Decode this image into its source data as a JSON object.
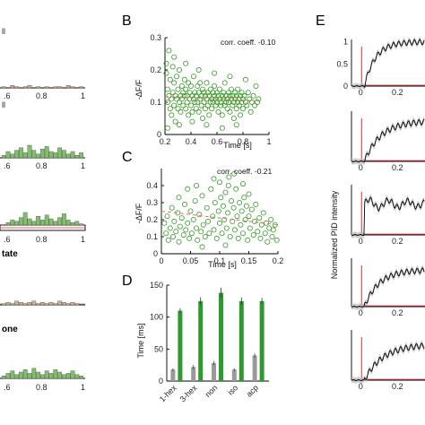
{
  "panel_labels": {
    "B": "B",
    "C": "C",
    "D": "D",
    "E": "E"
  },
  "left_panels": {
    "texts": [
      "ll",
      "ll",
      "tate",
      "one"
    ],
    "tick_labels": [
      ".6",
      "0.8",
      "1"
    ]
  },
  "chart_data": [
    {
      "panel": "B",
      "type": "scatter",
      "xlabel": "Time [s]",
      "ylabel": "-ΔF/F",
      "xlim": [
        0.2,
        1.0
      ],
      "ylim": [
        0,
        0.3
      ],
      "xticks": [
        "0.2",
        "0.4",
        "0.6",
        "0.8",
        "1"
      ],
      "yticks": [
        "0",
        "0.1",
        "0.2",
        "0.3"
      ],
      "annotation": "corr. coeff. -0.10",
      "color": "#3a9a2a",
      "points": [
        [
          0.21,
          0.22
        ],
        [
          0.21,
          0.19
        ],
        [
          0.22,
          0.1
        ],
        [
          0.22,
          0.14
        ],
        [
          0.23,
          0.26
        ],
        [
          0.23,
          0.12
        ],
        [
          0.24,
          0.08
        ],
        [
          0.24,
          0.17
        ],
        [
          0.25,
          0.11
        ],
        [
          0.25,
          0.06
        ],
        [
          0.26,
          0.21
        ],
        [
          0.26,
          0.13
        ],
        [
          0.27,
          0.09
        ],
        [
          0.27,
          0.16
        ],
        [
          0.28,
          0.12
        ],
        [
          0.28,
          0.04
        ],
        [
          0.29,
          0.18
        ],
        [
          0.29,
          0.11
        ],
        [
          0.3,
          0.14
        ],
        [
          0.3,
          0.08
        ],
        [
          0.31,
          0.1
        ],
        [
          0.31,
          0.2
        ],
        [
          0.32,
          0.12
        ],
        [
          0.32,
          0.07
        ],
        [
          0.33,
          0.15
        ],
        [
          0.33,
          0.11
        ],
        [
          0.34,
          0.09
        ],
        [
          0.34,
          0.13
        ],
        [
          0.35,
          0.12
        ],
        [
          0.35,
          0.17
        ],
        [
          0.36,
          0.08
        ],
        [
          0.36,
          0.14
        ],
        [
          0.37,
          0.1
        ],
        [
          0.37,
          0.12
        ],
        [
          0.38,
          0.06
        ],
        [
          0.38,
          0.16
        ],
        [
          0.39,
          0.11
        ],
        [
          0.39,
          0.13
        ],
        [
          0.4,
          0.09
        ],
        [
          0.4,
          0.15
        ],
        [
          0.41,
          0.12
        ],
        [
          0.41,
          0.07
        ],
        [
          0.42,
          0.11
        ],
        [
          0.42,
          0.18
        ],
        [
          0.43,
          0.1
        ],
        [
          0.43,
          0.13
        ],
        [
          0.44,
          0.08
        ],
        [
          0.44,
          0.12
        ],
        [
          0.45,
          0.15
        ],
        [
          0.45,
          0.1
        ],
        [
          0.46,
          0.13
        ],
        [
          0.46,
          0.07
        ],
        [
          0.47,
          0.11
        ],
        [
          0.47,
          0.16
        ],
        [
          0.48,
          0.09
        ],
        [
          0.48,
          0.12
        ],
        [
          0.49,
          0.14
        ],
        [
          0.49,
          0.05
        ],
        [
          0.5,
          0.1
        ],
        [
          0.5,
          0.13
        ],
        [
          0.51,
          0.12
        ],
        [
          0.51,
          0.08
        ],
        [
          0.52,
          0.16
        ],
        [
          0.52,
          0.11
        ],
        [
          0.53,
          0.09
        ],
        [
          0.53,
          0.13
        ],
        [
          0.54,
          0.12
        ],
        [
          0.54,
          0.06
        ],
        [
          0.55,
          0.1
        ],
        [
          0.55,
          0.14
        ],
        [
          0.56,
          0.11
        ],
        [
          0.56,
          0.08
        ],
        [
          0.57,
          0.13
        ],
        [
          0.57,
          0.1
        ],
        [
          0.58,
          0.12
        ],
        [
          0.58,
          0.15
        ],
        [
          0.59,
          0.09
        ],
        [
          0.59,
          0.11
        ],
        [
          0.6,
          0.1
        ],
        [
          0.6,
          0.13
        ],
        [
          0.61,
          0.07
        ],
        [
          0.61,
          0.12
        ],
        [
          0.62,
          0.11
        ],
        [
          0.62,
          0.14
        ],
        [
          0.63,
          0.09
        ],
        [
          0.63,
          0.1
        ],
        [
          0.64,
          0.12
        ],
        [
          0.64,
          0.06
        ],
        [
          0.65,
          0.11
        ],
        [
          0.65,
          0.13
        ],
        [
          0.66,
          0.09
        ],
        [
          0.66,
          0.16
        ],
        [
          0.67,
          0.1
        ],
        [
          0.67,
          0.12
        ],
        [
          0.68,
          0.08
        ],
        [
          0.68,
          0.11
        ],
        [
          0.69,
          0.13
        ],
        [
          0.69,
          0.1
        ],
        [
          0.7,
          0.12
        ],
        [
          0.7,
          0.07
        ],
        [
          0.71,
          0.11
        ],
        [
          0.71,
          0.14
        ],
        [
          0.72,
          0.09
        ],
        [
          0.72,
          0.12
        ],
        [
          0.73,
          0.1
        ],
        [
          0.73,
          0.05
        ],
        [
          0.74,
          0.13
        ],
        [
          0.74,
          0.11
        ],
        [
          0.75,
          0.08
        ],
        [
          0.75,
          0.12
        ],
        [
          0.76,
          0.1
        ],
        [
          0.76,
          0.14
        ],
        [
          0.77,
          0.09
        ],
        [
          0.77,
          0.11
        ],
        [
          0.78,
          0.12
        ],
        [
          0.78,
          0.06
        ],
        [
          0.79,
          0.1
        ],
        [
          0.79,
          0.13
        ],
        [
          0.8,
          0.11
        ],
        [
          0.8,
          0.08
        ],
        [
          0.81,
          0.12
        ],
        [
          0.82,
          0.1
        ],
        [
          0.83,
          0.09
        ],
        [
          0.84,
          0.13
        ],
        [
          0.85,
          0.11
        ],
        [
          0.86,
          0.07
        ],
        [
          0.87,
          0.1
        ],
        [
          0.88,
          0.12
        ],
        [
          0.89,
          0.09
        ],
        [
          0.9,
          0.15
        ],
        [
          0.91,
          0.1
        ],
        [
          0.92,
          0.11
        ],
        [
          0.22,
          0.02
        ],
        [
          0.27,
          0.24
        ],
        [
          0.31,
          0.03
        ],
        [
          0.36,
          0.22
        ],
        [
          0.41,
          0.04
        ],
        [
          0.46,
          0.2
        ],
        [
          0.52,
          0.03
        ],
        [
          0.58,
          0.19
        ],
        [
          0.64,
          0.02
        ],
        [
          0.7,
          0.18
        ],
        [
          0.75,
          0.03
        ],
        [
          0.82,
          0.17
        ]
      ],
      "fit_line": [
        [
          0.2,
          0.118
        ],
        [
          0.9,
          0.104
        ]
      ]
    },
    {
      "panel": "C",
      "type": "scatter",
      "xlabel": "Time [s]",
      "ylabel": "-ΔF/F",
      "xlim": [
        0,
        0.2
      ],
      "ylim": [
        0,
        0.5
      ],
      "xticks": [
        "0",
        "0.05",
        "0.1",
        "0.15",
        "0.2"
      ],
      "yticks": [
        "0",
        "0.1",
        "0.2",
        "0.3",
        "0.4"
      ],
      "annotation": "corr. coeff. -0.21",
      "color": "#3a9a2a",
      "points": [
        [
          0.005,
          0.18
        ],
        [
          0.008,
          0.12
        ],
        [
          0.01,
          0.22
        ],
        [
          0.012,
          0.08
        ],
        [
          0.015,
          0.15
        ],
        [
          0.018,
          0.27
        ],
        [
          0.02,
          0.1
        ],
        [
          0.022,
          0.19
        ],
        [
          0.025,
          0.13
        ],
        [
          0.028,
          0.24
        ],
        [
          0.03,
          0.07
        ],
        [
          0.032,
          0.16
        ],
        [
          0.035,
          0.21
        ],
        [
          0.038,
          0.11
        ],
        [
          0.04,
          0.29
        ],
        [
          0.042,
          0.14
        ],
        [
          0.045,
          0.18
        ],
        [
          0.048,
          0.09
        ],
        [
          0.05,
          0.25
        ],
        [
          0.052,
          0.12
        ],
        [
          0.055,
          0.2
        ],
        [
          0.058,
          0.31
        ],
        [
          0.06,
          0.15
        ],
        [
          0.062,
          0.08
        ],
        [
          0.065,
          0.23
        ],
        [
          0.068,
          0.13
        ],
        [
          0.07,
          0.34
        ],
        [
          0.072,
          0.17
        ],
        [
          0.075,
          0.1
        ],
        [
          0.078,
          0.27
        ],
        [
          0.08,
          0.19
        ],
        [
          0.082,
          0.12
        ],
        [
          0.085,
          0.38
        ],
        [
          0.088,
          0.22
        ],
        [
          0.09,
          0.14
        ],
        [
          0.092,
          0.3
        ],
        [
          0.095,
          0.09
        ],
        [
          0.098,
          0.25
        ],
        [
          0.1,
          0.18
        ],
        [
          0.1,
          0.42
        ],
        [
          0.102,
          0.33
        ],
        [
          0.104,
          0.12
        ],
        [
          0.106,
          0.28
        ],
        [
          0.108,
          0.2
        ],
        [
          0.11,
          0.36
        ],
        [
          0.112,
          0.15
        ],
        [
          0.114,
          0.24
        ],
        [
          0.116,
          0.45
        ],
        [
          0.118,
          0.1
        ],
        [
          0.12,
          0.31
        ],
        [
          0.122,
          0.19
        ],
        [
          0.124,
          0.27
        ],
        [
          0.126,
          0.14
        ],
        [
          0.128,
          0.38
        ],
        [
          0.13,
          0.22
        ],
        [
          0.132,
          0.09
        ],
        [
          0.134,
          0.3
        ],
        [
          0.136,
          0.17
        ],
        [
          0.138,
          0.25
        ],
        [
          0.14,
          0.12
        ],
        [
          0.142,
          0.33
        ],
        [
          0.144,
          0.2
        ],
        [
          0.146,
          0.28
        ],
        [
          0.148,
          0.08
        ],
        [
          0.15,
          0.22
        ],
        [
          0.152,
          0.15
        ],
        [
          0.155,
          0.26
        ],
        [
          0.158,
          0.11
        ],
        [
          0.16,
          0.19
        ],
        [
          0.162,
          0.29
        ],
        [
          0.165,
          0.13
        ],
        [
          0.168,
          0.21
        ],
        [
          0.17,
          0.09
        ],
        [
          0.172,
          0.17
        ],
        [
          0.175,
          0.24
        ],
        [
          0.178,
          0.12
        ],
        [
          0.18,
          0.18
        ],
        [
          0.182,
          0.07
        ],
        [
          0.185,
          0.15
        ],
        [
          0.188,
          0.2
        ],
        [
          0.19,
          0.1
        ],
        [
          0.192,
          0.14
        ],
        [
          0.195,
          0.17
        ],
        [
          0.198,
          0.08
        ],
        [
          0.06,
          0.4
        ],
        [
          0.09,
          0.44
        ],
        [
          0.115,
          0.4
        ],
        [
          0.125,
          0.47
        ],
        [
          0.14,
          0.41
        ],
        [
          0.03,
          0.33
        ],
        [
          0.11,
          0.05
        ],
        [
          0.07,
          0.04
        ],
        [
          0.15,
          0.35
        ],
        [
          0.045,
          0.38
        ]
      ],
      "fit_line": [
        [
          0.0,
          0.25
        ],
        [
          0.2,
          0.17
        ]
      ]
    },
    {
      "panel": "D",
      "type": "bar",
      "ylabel": "Time [ms]",
      "ylim": [
        0,
        150
      ],
      "yticks": [
        "0",
        "50",
        "100",
        "150"
      ],
      "categories": [
        "1-hex",
        "3-hex",
        "non",
        "iso",
        "acp"
      ],
      "series": [
        {
          "color": "#9a9a9a",
          "values": [
            18,
            22,
            28,
            18,
            40
          ],
          "errors": [
            2,
            3,
            3,
            2,
            3
          ]
        },
        {
          "color": "#2e9a2e",
          "values": [
            110,
            125,
            138,
            125,
            125
          ],
          "errors": [
            4,
            6,
            8,
            6,
            5
          ]
        }
      ]
    },
    {
      "panel": "E",
      "type": "line",
      "ylabel": "Normalized PID intensity",
      "xticks": [
        "0",
        "0.2"
      ],
      "yticks_first": [
        "0",
        "0.5",
        "1"
      ],
      "line_color": "#000000",
      "marker_color": "#e03030",
      "traces": [
        {
          "xmax": 0.35,
          "stim": 0.0,
          "shape": "rise_fast"
        },
        {
          "xmax": 0.35,
          "stim": 0.0,
          "shape": "rise_slow"
        },
        {
          "xmax": 0.35,
          "stim": 0.0,
          "shape": "step_noisy"
        },
        {
          "xmax": 0.35,
          "stim": 0.0,
          "shape": "rise_medium"
        },
        {
          "xmax": 0.35,
          "stim": 0.0,
          "shape": "rise_late"
        }
      ]
    }
  ]
}
